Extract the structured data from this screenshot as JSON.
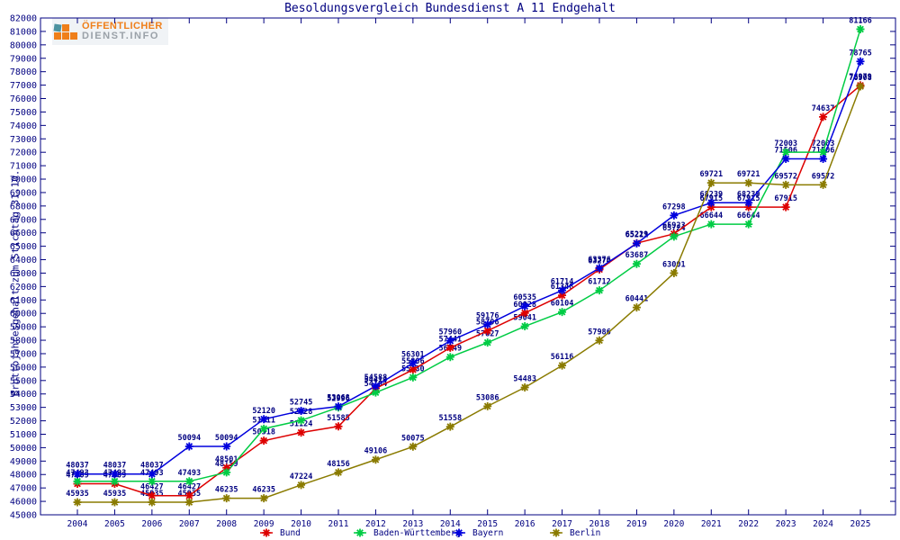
{
  "logo": {
    "line1": "ÖFFENTLICHER",
    "line2": "DIENST.INFO"
  },
  "chart_data": {
    "type": "line",
    "title": "Besoldungsvergleich Bundesdienst A 11 Endgehalt",
    "ylabel": "Bruttojahresgehalt zum Stichtag 31.10.",
    "xlabel": "",
    "x": [
      2004,
      2005,
      2006,
      2007,
      2008,
      2009,
      2010,
      2011,
      2012,
      2013,
      2014,
      2015,
      2016,
      2017,
      2018,
      2019,
      2020,
      2021,
      2022,
      2023,
      2024,
      2025
    ],
    "ylim": [
      45000,
      82000
    ],
    "ytick_step": 1000,
    "grid": false,
    "point_labels": true,
    "label_color": "#000080",
    "axis_color": "#000080",
    "legend_position": "bottom",
    "series": [
      {
        "name": "Bund",
        "color": "#dd0000",
        "values": [
          47309,
          47309,
          46427,
          46427,
          48501,
          50518,
          51124,
          51585,
          54414,
          55806,
          57441,
          58706,
          60028,
          61348,
          63274,
          65229,
          65923,
          67915,
          67915,
          67915,
          74637,
          76979
        ]
      },
      {
        "name": "Baden-Württemberg",
        "color": "#00cc44",
        "values": [
          47493,
          47493,
          47493,
          47493,
          48159,
          51411,
          52028,
          52996,
          54104,
          55230,
          56749,
          57827,
          59041,
          60104,
          61712,
          63687,
          65724,
          66644,
          66644,
          72003,
          72003,
          81166
        ]
      },
      {
        "name": "Bayern",
        "color": "#0000dd",
        "values": [
          48037,
          48037,
          48037,
          50094,
          50094,
          52120,
          52745,
          53068,
          54588,
          56301,
          57960,
          59176,
          60535,
          61714,
          63376,
          65211,
          67298,
          68239,
          68239,
          71506,
          71506,
          78765
        ]
      },
      {
        "name": "Berlin",
        "color": "#8a7b00",
        "values": [
          45935,
          45935,
          45935,
          45935,
          46235,
          46235,
          47224,
          48156,
          49106,
          50075,
          51558,
          53086,
          54483,
          56116,
          57986,
          60441,
          63001,
          69721,
          69721,
          69572,
          69572,
          76908
        ]
      }
    ]
  }
}
